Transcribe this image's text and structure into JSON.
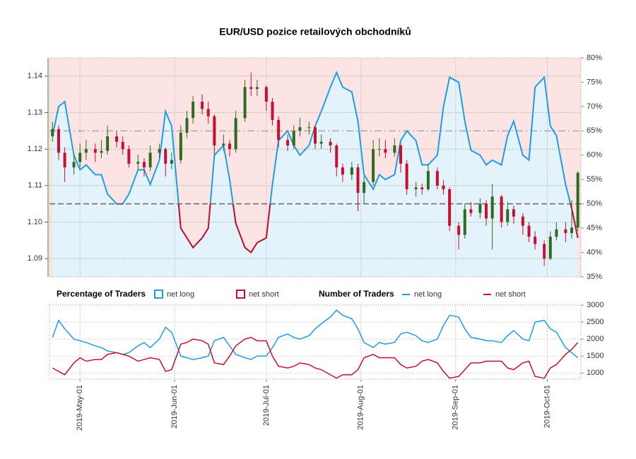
{
  "chart_data": [
    {
      "type": "candlestick",
      "title": "EUR/USD pozice retailových obchodníků",
      "x": [
        "2019-04-22",
        "2019-04-24",
        "2019-04-26",
        "2019-04-29",
        "2019-05-01",
        "2019-05-03",
        "2019-05-06",
        "2019-05-08",
        "2019-05-10",
        "2019-05-13",
        "2019-05-15",
        "2019-05-17",
        "2019-05-20",
        "2019-05-22",
        "2019-05-24",
        "2019-05-27",
        "2019-05-29",
        "2019-05-31",
        "2019-06-03",
        "2019-06-05",
        "2019-06-07",
        "2019-06-10",
        "2019-06-12",
        "2019-06-14",
        "2019-06-17",
        "2019-06-19",
        "2019-06-21",
        "2019-06-24",
        "2019-06-26",
        "2019-06-28",
        "2019-07-01",
        "2019-07-03",
        "2019-07-05",
        "2019-07-08",
        "2019-07-10",
        "2019-07-12",
        "2019-07-15",
        "2019-07-17",
        "2019-07-19",
        "2019-07-22",
        "2019-07-24",
        "2019-07-26",
        "2019-07-29",
        "2019-07-31",
        "2019-08-02",
        "2019-08-05",
        "2019-08-07",
        "2019-08-09",
        "2019-08-12",
        "2019-08-14",
        "2019-08-16",
        "2019-08-19",
        "2019-08-21",
        "2019-08-23",
        "2019-08-26",
        "2019-08-28",
        "2019-08-30",
        "2019-09-02",
        "2019-09-04",
        "2019-09-06",
        "2019-09-09",
        "2019-09-11",
        "2019-09-13",
        "2019-09-16",
        "2019-09-18",
        "2019-09-20",
        "2019-09-23",
        "2019-09-25",
        "2019-09-27",
        "2019-09-30",
        "2019-10-02",
        "2019-10-04",
        "2019-10-07",
        "2019-10-09",
        "2019-10-11"
      ],
      "ohlc": [
        [
          1.1235,
          1.1275,
          1.122,
          1.1255
        ],
        [
          1.1255,
          1.1265,
          1.117,
          1.119
        ],
        [
          1.119,
          1.1205,
          1.111,
          1.115
        ],
        [
          1.115,
          1.1185,
          1.113,
          1.1165
        ],
        [
          1.1165,
          1.1215,
          1.115,
          1.119
        ],
        [
          1.119,
          1.1225,
          1.117,
          1.12
        ],
        [
          1.12,
          1.1215,
          1.1165,
          1.119
        ],
        [
          1.119,
          1.1225,
          1.1175,
          1.1195
        ],
        [
          1.1195,
          1.1265,
          1.1185,
          1.1235
        ],
        [
          1.1235,
          1.125,
          1.1205,
          1.122
        ],
        [
          1.122,
          1.1235,
          1.1185,
          1.12
        ],
        [
          1.12,
          1.121,
          1.115,
          1.116
        ],
        [
          1.116,
          1.1185,
          1.1145,
          1.1165
        ],
        [
          1.1165,
          1.1175,
          1.1125,
          1.115
        ],
        [
          1.115,
          1.121,
          1.114,
          1.119
        ],
        [
          1.119,
          1.1215,
          1.1175,
          1.12
        ],
        [
          1.12,
          1.1205,
          1.1125,
          1.116
        ],
        [
          1.116,
          1.119,
          1.1145,
          1.117
        ],
        [
          1.117,
          1.1265,
          1.116,
          1.1245
        ],
        [
          1.1245,
          1.1305,
          1.123,
          1.1285
        ],
        [
          1.1285,
          1.1345,
          1.127,
          1.133
        ],
        [
          1.133,
          1.135,
          1.1295,
          1.131
        ],
        [
          1.131,
          1.133,
          1.127,
          1.129
        ],
        [
          1.129,
          1.1295,
          1.1185,
          1.121
        ],
        [
          1.121,
          1.124,
          1.1195,
          1.1215
        ],
        [
          1.1215,
          1.1225,
          1.118,
          1.12
        ],
        [
          1.12,
          1.1305,
          1.119,
          1.1285
        ],
        [
          1.1285,
          1.139,
          1.1275,
          1.137
        ],
        [
          1.137,
          1.141,
          1.1345,
          1.1365
        ],
        [
          1.1365,
          1.139,
          1.1345,
          1.137
        ],
        [
          1.137,
          1.1375,
          1.1305,
          1.133
        ],
        [
          1.133,
          1.134,
          1.1265,
          1.128
        ],
        [
          1.128,
          1.129,
          1.1205,
          1.1225
        ],
        [
          1.1225,
          1.124,
          1.1195,
          1.121
        ],
        [
          1.121,
          1.1265,
          1.12,
          1.125
        ],
        [
          1.125,
          1.1285,
          1.1235,
          1.126
        ],
        [
          1.126,
          1.1275,
          1.124,
          1.126
        ],
        [
          1.126,
          1.1265,
          1.12,
          1.1215
        ],
        [
          1.1215,
          1.124,
          1.12,
          1.122
        ],
        [
          1.122,
          1.123,
          1.119,
          1.121
        ],
        [
          1.121,
          1.1215,
          1.1125,
          1.115
        ],
        [
          1.115,
          1.116,
          1.111,
          1.113
        ],
        [
          1.113,
          1.1165,
          1.1115,
          1.115
        ],
        [
          1.115,
          1.116,
          1.103,
          1.108
        ],
        [
          1.108,
          1.1125,
          1.105,
          1.111
        ],
        [
          1.111,
          1.1225,
          1.11,
          1.12
        ],
        [
          1.12,
          1.123,
          1.118,
          1.12
        ],
        [
          1.12,
          1.1225,
          1.1175,
          1.119
        ],
        [
          1.119,
          1.123,
          1.118,
          1.121
        ],
        [
          1.121,
          1.1215,
          1.1135,
          1.116
        ],
        [
          1.116,
          1.117,
          1.1075,
          1.109
        ],
        [
          1.109,
          1.111,
          1.107,
          1.1095
        ],
        [
          1.1095,
          1.1105,
          1.1075,
          1.109
        ],
        [
          1.109,
          1.116,
          1.1085,
          1.114
        ],
        [
          1.114,
          1.115,
          1.109,
          1.11
        ],
        [
          1.11,
          1.1115,
          1.1075,
          1.109
        ],
        [
          1.109,
          1.1095,
          1.0975,
          1.099
        ],
        [
          1.099,
          1.1,
          1.0925,
          1.0965
        ],
        [
          1.0965,
          1.105,
          1.0955,
          1.1035
        ],
        [
          1.1035,
          1.1055,
          1.1015,
          1.1025
        ],
        [
          1.1025,
          1.1065,
          1.101,
          1.105
        ],
        [
          1.105,
          1.106,
          1.099,
          1.101
        ],
        [
          1.101,
          1.1105,
          1.0925,
          1.107
        ],
        [
          1.107,
          1.1075,
          1.0985,
          1.1
        ],
        [
          1.1,
          1.1055,
          1.099,
          1.1035
        ],
        [
          1.1035,
          1.1045,
          1.0995,
          1.1015
        ],
        [
          1.1015,
          1.1025,
          1.0965,
          1.099
        ],
        [
          1.099,
          1.1,
          1.0945,
          1.096
        ],
        [
          1.096,
          1.0975,
          1.0925,
          1.094
        ],
        [
          1.094,
          1.095,
          1.088,
          1.09
        ],
        [
          1.09,
          1.0975,
          1.0895,
          1.096
        ],
        [
          1.096,
          1.1,
          1.095,
          1.098
        ],
        [
          1.098,
          1.1,
          1.0945,
          1.097
        ],
        [
          1.097,
          1.106,
          1.0955,
          1.0985
        ],
        [
          1.0985,
          1.114,
          1.0975,
          1.1135
        ]
      ],
      "up_color": "#2e6b1f",
      "down_color": "#c8102e",
      "xlim": [
        "2019-04-21",
        "2019-10-12"
      ],
      "ylim": [
        1.085,
        1.145
      ],
      "yticks": [
        1.09,
        {
          "value": 1.1,
          "label": "1.10"
        },
        1.11,
        1.12,
        1.13,
        1.14
      ],
      "y_axis_color": "#3a8a1c",
      "y2lim": [
        35,
        80
      ],
      "y2ticks": [
        {
          "value": 35,
          "label": "35%"
        },
        {
          "value": 40,
          "label": "40%"
        },
        {
          "value": 45,
          "label": "45%"
        },
        {
          "value": 50,
          "label": "50%"
        },
        {
          "value": 55,
          "label": "55%"
        },
        {
          "value": 60,
          "label": "60%"
        },
        {
          "value": 65,
          "label": "65%"
        },
        {
          "value": 70,
          "label": "70%"
        },
        {
          "value": 75,
          "label": "75%"
        },
        {
          "value": 80,
          "label": "80%"
        }
      ],
      "hlines": [
        {
          "value": 50,
          "color": "#666666"
        },
        {
          "value": 65,
          "color": "#aaaaaa"
        }
      ],
      "legend_title": "Percentage of Traders",
      "series": [
        {
          "name": "net long",
          "color": "#1e9de3",
          "fill": "#e3f2fb",
          "axis": "y2",
          "values": [
            64,
            70,
            71,
            60,
            57,
            58,
            56,
            56,
            52,
            50,
            50,
            52,
            57,
            57,
            54,
            59,
            69,
            66,
            45,
            43,
            41,
            43,
            45,
            60,
            62,
            55,
            46,
            41,
            40,
            42,
            43,
            54,
            63,
            65,
            62,
            60,
            62,
            66,
            69,
            74,
            77,
            74,
            73,
            67,
            56,
            53,
            56,
            55,
            56,
            63,
            65,
            63,
            58,
            58,
            60,
            70,
            76,
            75,
            67,
            61,
            60,
            58,
            59,
            58,
            64,
            67,
            60,
            59,
            74,
            76,
            66,
            64,
            54,
            49,
            43
          ]
        },
        {
          "name": "net short",
          "color": "#c8102e",
          "fill": "#fce4e4"
        }
      ]
    },
    {
      "type": "line",
      "legend_title": "Number of Traders",
      "xlim": [
        "2019-04-21",
        "2019-10-12"
      ],
      "xticks": [
        {
          "value": "2019-05-01",
          "label": "2019-May-01"
        },
        {
          "value": "2019-06-01",
          "label": "2019-Jun-01"
        },
        {
          "value": "2019-07-01",
          "label": "2019-Jul-01"
        },
        {
          "value": "2019-08-01",
          "label": "2019-Aug-01"
        },
        {
          "value": "2019-09-01",
          "label": "2019-Sep-01"
        },
        {
          "value": "2019-10-01",
          "label": "2019-Oct-01"
        }
      ],
      "ylim": [
        820,
        3000
      ],
      "yticks": [
        1000,
        1500,
        2000,
        2500,
        3000
      ],
      "series": [
        {
          "name": "net long",
          "color": "#1e9de3",
          "values": [
            2050,
            2550,
            2300,
            2000,
            1950,
            1900,
            1800,
            1750,
            1650,
            1600,
            1550,
            1600,
            1800,
            1900,
            1750,
            2000,
            2350,
            2200,
            1500,
            1450,
            1400,
            1450,
            1500,
            1950,
            2050,
            1800,
            1550,
            1450,
            1400,
            1500,
            1500,
            1750,
            2050,
            2150,
            2050,
            2000,
            2100,
            2300,
            2450,
            2650,
            2850,
            2700,
            2600,
            2300,
            1900,
            1750,
            1900,
            1850,
            1900,
            2150,
            2200,
            2100,
            1950,
            1900,
            2000,
            2400,
            2700,
            2650,
            2300,
            2050,
            2000,
            1950,
            1950,
            1900,
            2100,
            2250,
            2000,
            1950,
            2500,
            2550,
            2300,
            2200,
            1750,
            1600,
            1450
          ]
        },
        {
          "name": "net short",
          "color": "#c8102e",
          "values": [
            1150,
            1050,
            950,
            1300,
            1450,
            1350,
            1400,
            1400,
            1550,
            1600,
            1550,
            1500,
            1350,
            1400,
            1450,
            1400,
            1050,
            1100,
            1850,
            1900,
            2000,
            1950,
            1850,
            1300,
            1250,
            1500,
            1800,
            2000,
            2050,
            1950,
            1950,
            1500,
            1200,
            1150,
            1200,
            1300,
            1250,
            1150,
            1100,
            950,
            850,
            950,
            950,
            1100,
            1450,
            1550,
            1450,
            1450,
            1450,
            1250,
            1150,
            1200,
            1350,
            1400,
            1300,
            1050,
            850,
            900,
            1100,
            1300,
            1300,
            1350,
            1350,
            1350,
            1150,
            1100,
            1300,
            1350,
            900,
            850,
            1150,
            1250,
            1550,
            1700,
            1900
          ]
        }
      ]
    }
  ]
}
